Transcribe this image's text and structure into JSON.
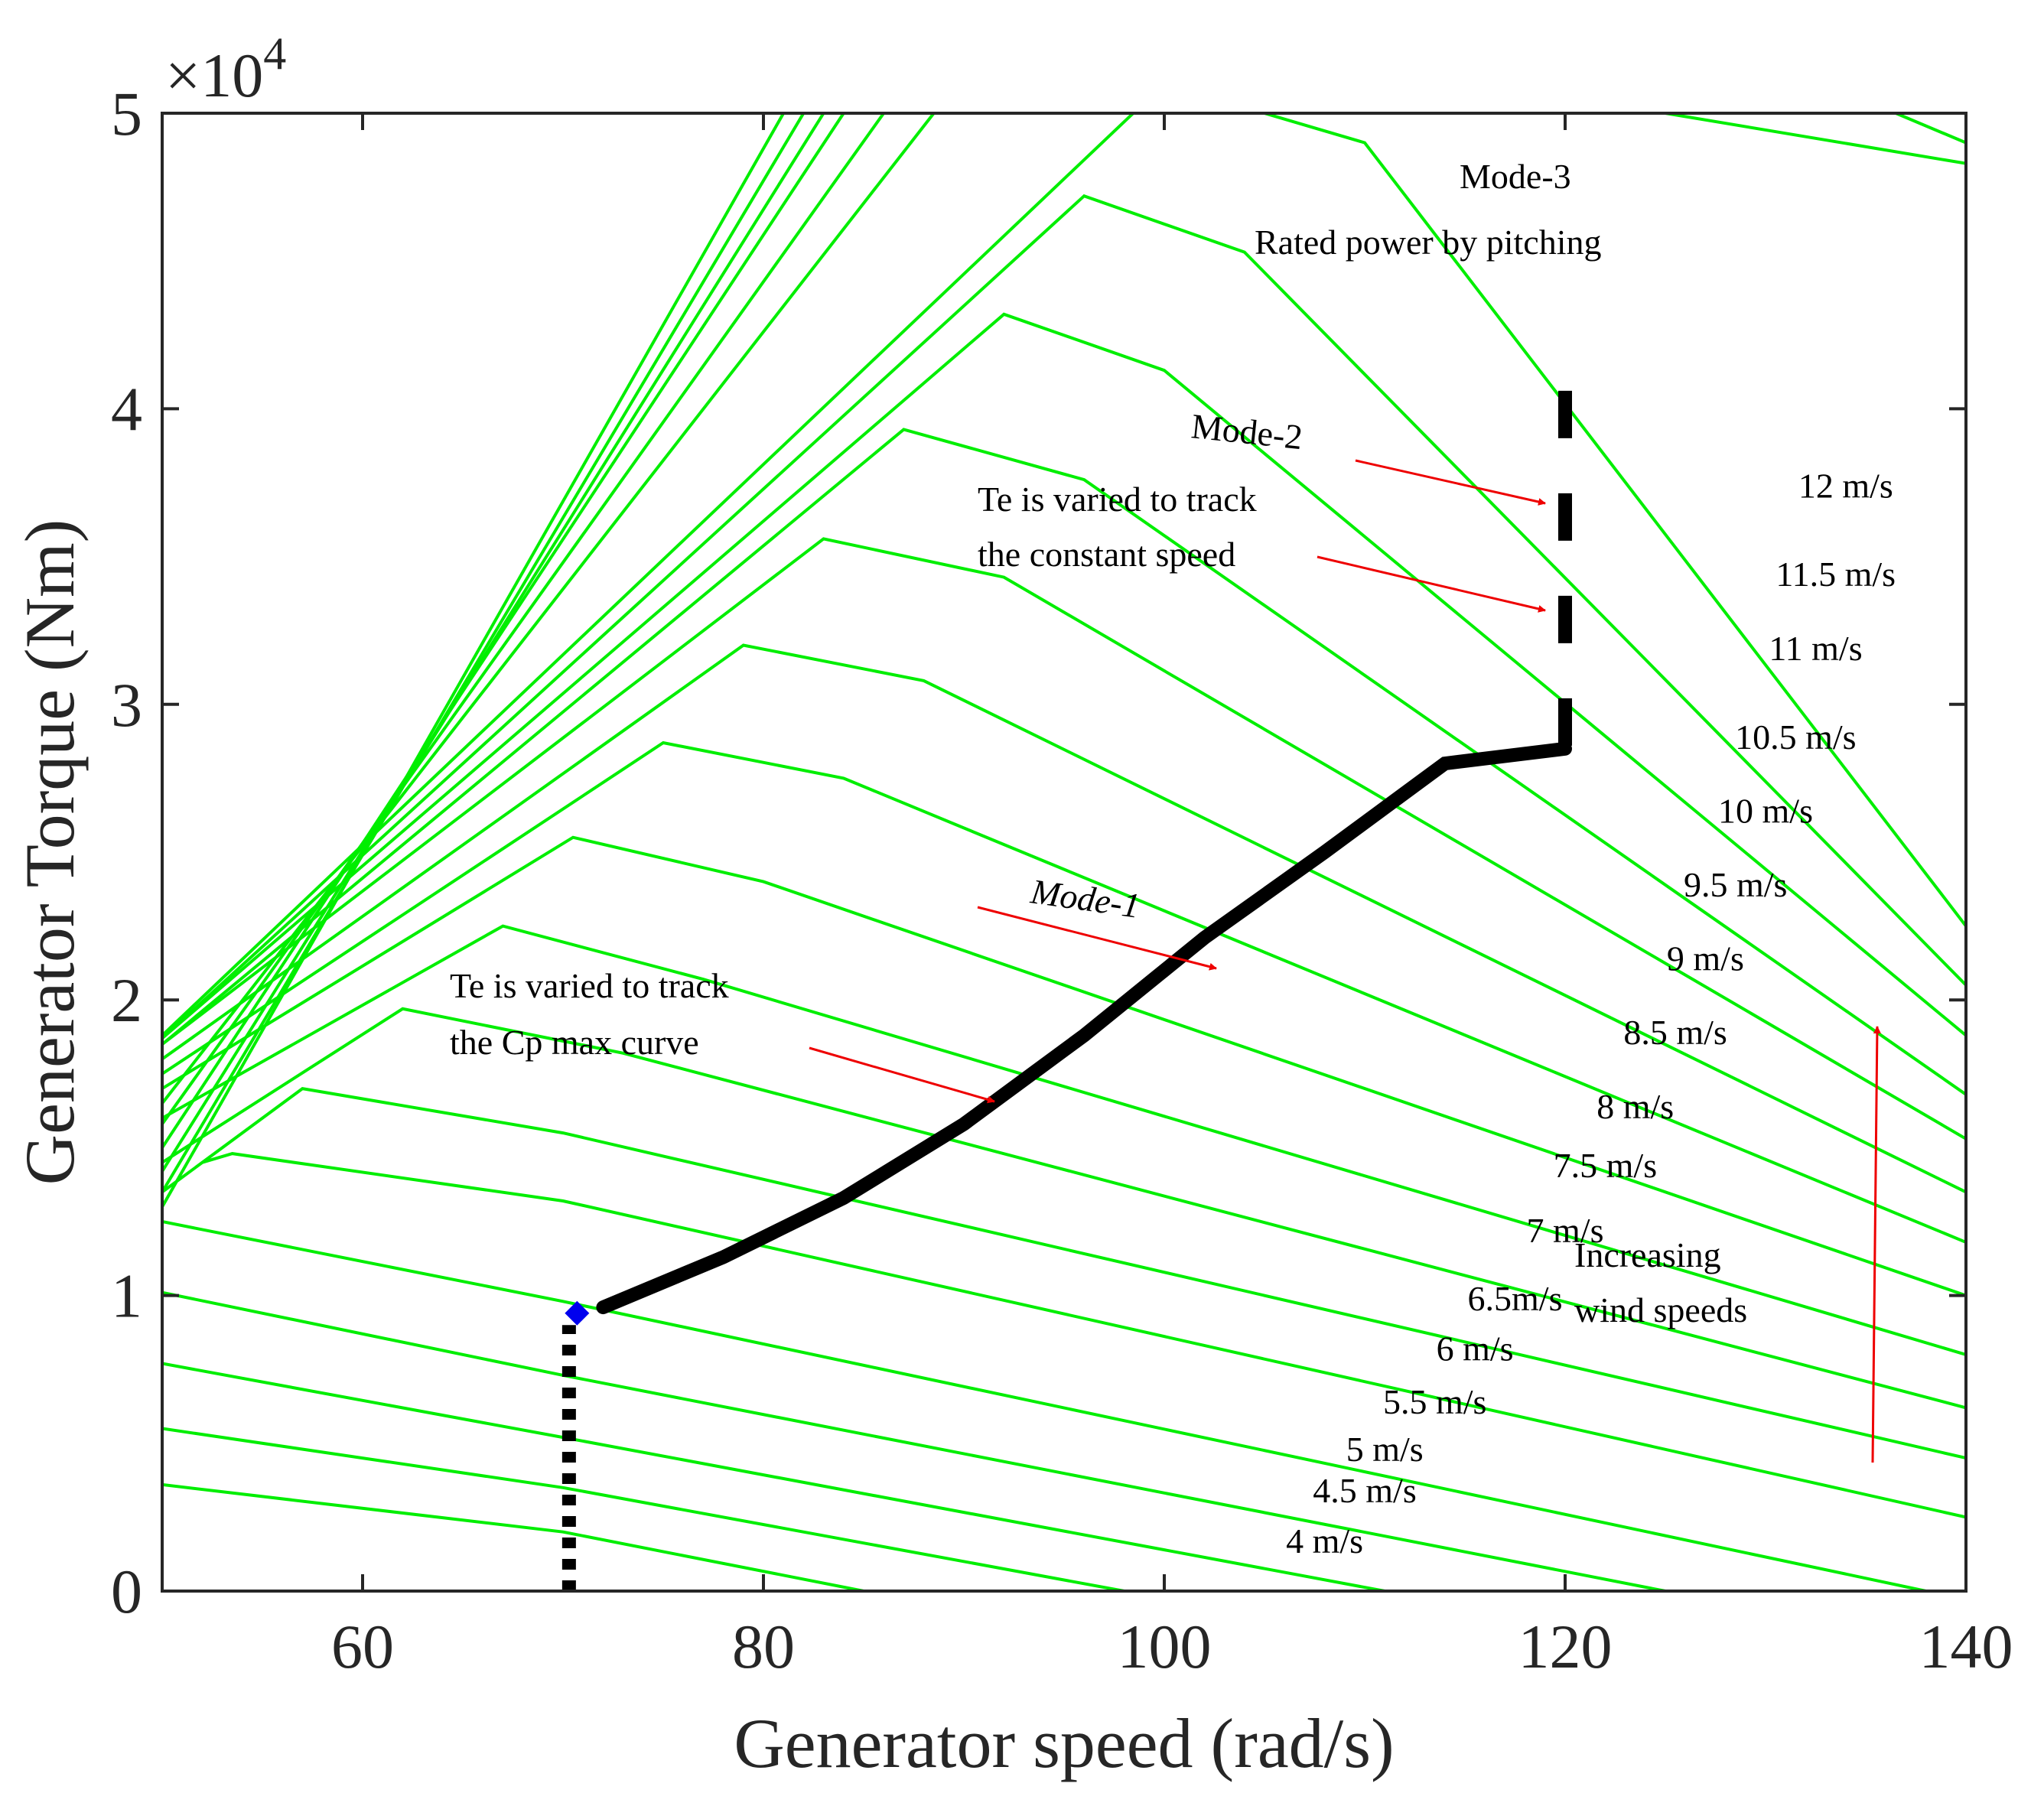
{
  "chart_data": {
    "type": "line",
    "xlabel": "Generator speed (rad/s)",
    "ylabel": "Generator Torque (Nm)",
    "xlim": [
      50,
      140
    ],
    "ylim": [
      0,
      50000
    ],
    "xticks": [
      60,
      80,
      100,
      120,
      140
    ],
    "yticks": [
      0,
      1,
      2,
      3,
      4,
      5
    ],
    "y_exponent_label": "×10",
    "y_exponent_power": "4",
    "series_color": "#00ee00",
    "wind_speed_curves": [
      {
        "label": "4 m/s",
        "label_x": 108,
        "label_y": 1300,
        "points": [
          [
            50,
            3600
          ],
          [
            70,
            2000
          ],
          [
            85,
            0
          ]
        ]
      },
      {
        "label": "4.5 m/s",
        "label_x": 110,
        "label_y": 3000,
        "points": [
          [
            50,
            5500
          ],
          [
            70,
            3500
          ],
          [
            98,
            0
          ]
        ]
      },
      {
        "label": "5 m/s",
        "label_x": 111,
        "label_y": 4400,
        "points": [
          [
            50,
            7700
          ],
          [
            70,
            5200
          ],
          [
            111,
            0
          ]
        ]
      },
      {
        "label": "5.5 m/s",
        "label_x": 113.5,
        "label_y": 6000,
        "points": [
          [
            50,
            10100
          ],
          [
            70,
            7300
          ],
          [
            125,
            0
          ]
        ]
      },
      {
        "label": "6 m/s",
        "label_x": 115.5,
        "label_y": 7800,
        "points": [
          [
            50,
            12500
          ],
          [
            70,
            9800
          ],
          [
            138,
            0
          ]
        ]
      },
      {
        "label": "6.5m/s",
        "label_x": 117.5,
        "label_y": 9500,
        "points": [
          [
            52,
            14500
          ],
          [
            53.5,
            14800
          ],
          [
            70,
            13200
          ],
          [
            140,
            2500
          ]
        ]
      },
      {
        "label": "7 m/s",
        "label_x": 120,
        "label_y": 11800,
        "points": [
          [
            50,
            13500
          ],
          [
            57,
            17000
          ],
          [
            70,
            15500
          ],
          [
            140,
            4500
          ]
        ]
      },
      {
        "label": "7.5 m/s",
        "label_x": 122,
        "label_y": 14000,
        "points": [
          [
            50,
            14500
          ],
          [
            62,
            19700
          ],
          [
            73,
            18200
          ],
          [
            140,
            6200
          ]
        ]
      },
      {
        "label": "8 m/s",
        "label_x": 123.5,
        "label_y": 16000,
        "points": [
          [
            50,
            16000
          ],
          [
            67,
            22500
          ],
          [
            77,
            20700
          ],
          [
            140,
            8000
          ]
        ]
      },
      {
        "label": "8.5 m/s",
        "label_x": 125.5,
        "label_y": 18500,
        "points": [
          [
            50,
            17000
          ],
          [
            70.5,
            25500
          ],
          [
            80,
            24000
          ],
          [
            140,
            10000
          ]
        ]
      },
      {
        "label": "9 m/s",
        "label_x": 127,
        "label_y": 21000,
        "points": [
          [
            50,
            17500
          ],
          [
            75,
            28700
          ],
          [
            84,
            27500
          ],
          [
            140,
            11800
          ]
        ]
      },
      {
        "label": "9.5 m/s",
        "label_x": 128.5,
        "label_y": 23500,
        "points": [
          [
            50,
            18000
          ],
          [
            79,
            32000
          ],
          [
            88,
            30800
          ],
          [
            140,
            13500
          ]
        ]
      },
      {
        "label": "10 m/s",
        "label_x": 130,
        "label_y": 26000,
        "points": [
          [
            50,
            18500
          ],
          [
            83,
            35600
          ],
          [
            92,
            34300
          ],
          [
            140,
            15300
          ]
        ]
      },
      {
        "label": "10.5 m/s",
        "label_x": 131.5,
        "label_y": 28500,
        "points": [
          [
            50,
            18500
          ],
          [
            87,
            39300
          ],
          [
            96,
            37600
          ],
          [
            140,
            16800
          ]
        ]
      },
      {
        "label": "11 m/s",
        "label_x": 132.5,
        "label_y": 31500,
        "points": [
          [
            50,
            18700
          ],
          [
            92,
            43200
          ],
          [
            100,
            41300
          ],
          [
            140,
            18800
          ]
        ]
      },
      {
        "label": "11.5 m/s",
        "label_x": 133.5,
        "label_y": 34000,
        "points": [
          [
            50,
            18700
          ],
          [
            96,
            47200
          ],
          [
            104,
            45300
          ],
          [
            140,
            20500
          ]
        ]
      },
      {
        "label": "12 m/s",
        "label_x": 134,
        "label_y": 37000,
        "points": [
          [
            50,
            18800
          ],
          [
            100,
            51000
          ],
          [
            110,
            49000
          ],
          [
            140,
            22500
          ]
        ]
      }
    ],
    "extra_curves": [
      {
        "points": [
          [
            50,
            13000
          ],
          [
            81,
            50000
          ]
        ]
      },
      {
        "points": [
          [
            50,
            13500
          ],
          [
            82,
            50000
          ]
        ]
      },
      {
        "points": [
          [
            50,
            14200
          ],
          [
            83,
            50000
          ]
        ]
      },
      {
        "points": [
          [
            50,
            15000
          ],
          [
            84,
            50000
          ]
        ]
      },
      {
        "points": [
          [
            50,
            15800
          ],
          [
            86,
            50000
          ]
        ]
      },
      {
        "points": [
          [
            50,
            16500
          ],
          [
            88.5,
            50000
          ]
        ]
      },
      {
        "points": [
          [
            125,
            50000
          ],
          [
            140,
            48300
          ]
        ]
      },
      {
        "points": [
          [
            136.5,
            50000
          ],
          [
            140,
            49000
          ]
        ]
      }
    ],
    "operating_curve": {
      "mode1_points": [
        [
          72,
          9600
        ],
        [
          78,
          11300
        ],
        [
          84,
          13300
        ],
        [
          90,
          15800
        ],
        [
          96,
          18800
        ],
        [
          102,
          22100
        ],
        [
          108,
          25000
        ],
        [
          114,
          28000
        ],
        [
          120,
          28500
        ]
      ],
      "mode3_point_speed": 120,
      "mode2_dashed_from": 28600,
      "mode2_dashed_to": 41500,
      "mode0_dotted_speed": 70.3,
      "mode0_dotted_from": 0,
      "mode0_dotted_to": 9000,
      "marker_x": 70.7,
      "marker_y": 9400,
      "marker_color": "#0000ee"
    },
    "annotations": {
      "mode3_title": "Mode-3",
      "mode3_text": "Rated power by pitching",
      "mode2_title": "Mode-2",
      "mode2_line1": "Te is varied to track",
      "mode2_line2": "the constant speed",
      "mode1_title": "Mode-1",
      "cp_line1": "Te is varied to track",
      "cp_line2": "the Cp max curve",
      "increasing_line1": "Increasing",
      "increasing_line2": "wind speeds"
    },
    "arrow_color": "#ee0000"
  }
}
